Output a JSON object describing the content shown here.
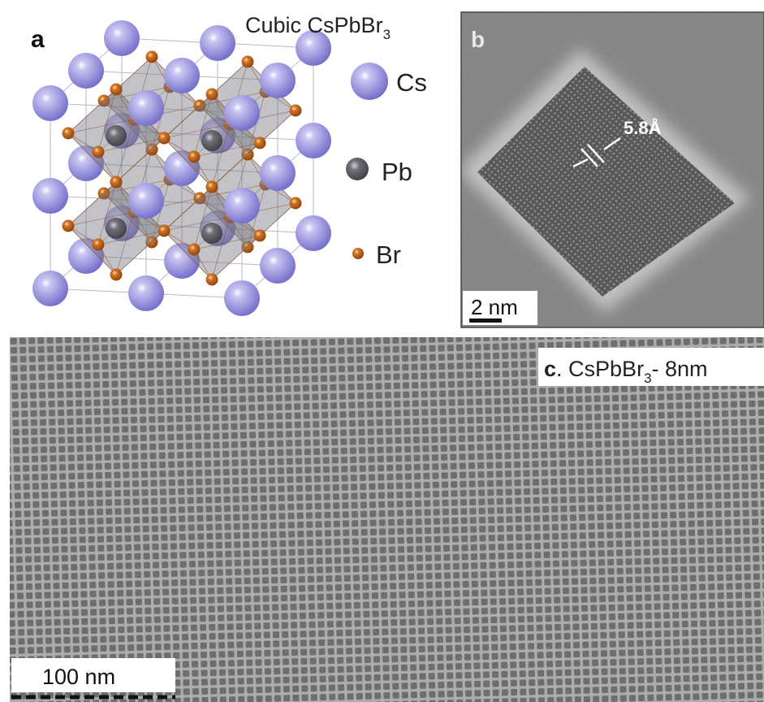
{
  "panels": {
    "a": {
      "label": "a",
      "title": {
        "text": "Cubic CsPbBr",
        "subscript": "3"
      },
      "legend": [
        "Cs",
        "Pb",
        "Br"
      ]
    },
    "b": {
      "label": "b",
      "spacing": "5.8Å",
      "scale_bar": "2 nm"
    },
    "c": {
      "label": "c",
      "caption": {
        "text": ". CsPbBr",
        "subscript": "3",
        "suffix": "- 8nm"
      },
      "scale_bar": "100 nm"
    }
  }
}
